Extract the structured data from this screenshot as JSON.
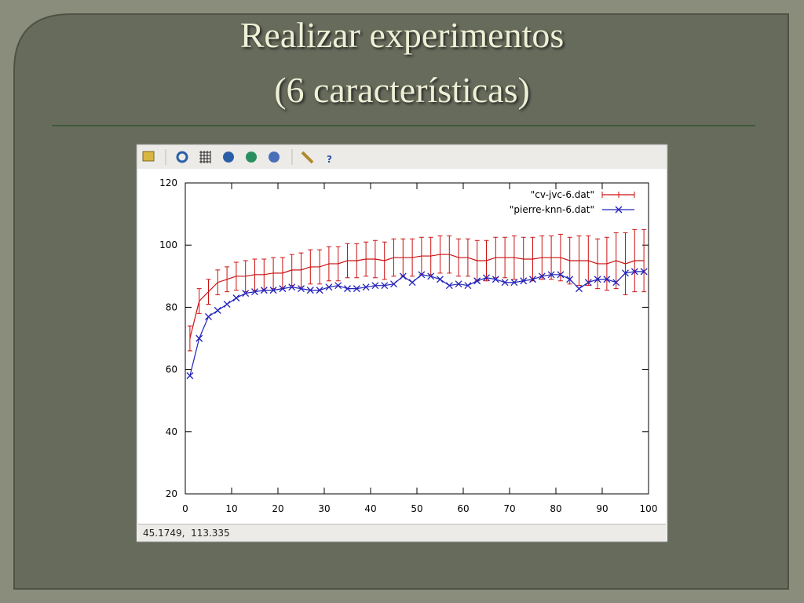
{
  "slide_title": [
    "Realizar experimentos",
    "(6 características)"
  ],
  "status_bar": "45.1749,  113.335",
  "chart_data": {
    "type": "line",
    "x": [
      1,
      3,
      5,
      7,
      9,
      11,
      13,
      15,
      17,
      19,
      21,
      23,
      25,
      27,
      29,
      31,
      33,
      35,
      37,
      39,
      41,
      43,
      45,
      47,
      49,
      51,
      53,
      55,
      57,
      59,
      61,
      63,
      65,
      67,
      69,
      71,
      73,
      75,
      77,
      79,
      81,
      83,
      85,
      87,
      89,
      91,
      93,
      95,
      97,
      99
    ],
    "series": [
      {
        "name": "\"cv-jvc-6.dat\"",
        "color": "#cc1111",
        "values": [
          70,
          82,
          85,
          88,
          89,
          90,
          90,
          90.5,
          90.5,
          91,
          91,
          92,
          92,
          93,
          93,
          94,
          94,
          95,
          95,
          95.5,
          95.5,
          95,
          96,
          96,
          96,
          96.5,
          96.5,
          97,
          97,
          96,
          96,
          95,
          95,
          96,
          96,
          96,
          95.5,
          95.5,
          96,
          96,
          96,
          95,
          95,
          95,
          94,
          94,
          95,
          94,
          95,
          95
        ],
        "errors": [
          4,
          4,
          4,
          4,
          4,
          4.5,
          5,
          5,
          5,
          5,
          5,
          5,
          5.5,
          5.5,
          5.5,
          5.5,
          5.5,
          5.5,
          5.5,
          5.5,
          6,
          6,
          6,
          6,
          6,
          6,
          6,
          6,
          6,
          6,
          6,
          6.5,
          6.5,
          6.5,
          6.5,
          7,
          7,
          7,
          7,
          7,
          7.5,
          7.5,
          8,
          8,
          8,
          8.5,
          9,
          10,
          10,
          10
        ]
      },
      {
        "name": "\"pierre-knn-6.dat\"",
        "color": "#2222bb",
        "marker": "x",
        "values": [
          58,
          70,
          77,
          79,
          81,
          83,
          84.5,
          85,
          85.5,
          85.5,
          86,
          86.5,
          86,
          85.5,
          85.5,
          86.5,
          87,
          86,
          86,
          86.5,
          87,
          87,
          87.5,
          90,
          88,
          90.5,
          90,
          89,
          87,
          87.5,
          87,
          88.5,
          89.5,
          89,
          88,
          88,
          88.5,
          89,
          90,
          90.5,
          90.5,
          89,
          86,
          88,
          89,
          89,
          88,
          91,
          91.5,
          91.5
        ]
      }
    ],
    "xlim": [
      0,
      100
    ],
    "xticks": [
      0,
      10,
      20,
      30,
      40,
      50,
      60,
      70,
      80,
      90,
      100
    ],
    "ylim": [
      20,
      120
    ],
    "yticks": [
      20,
      40,
      60,
      80,
      100,
      120
    ],
    "legend": "upper-right"
  }
}
